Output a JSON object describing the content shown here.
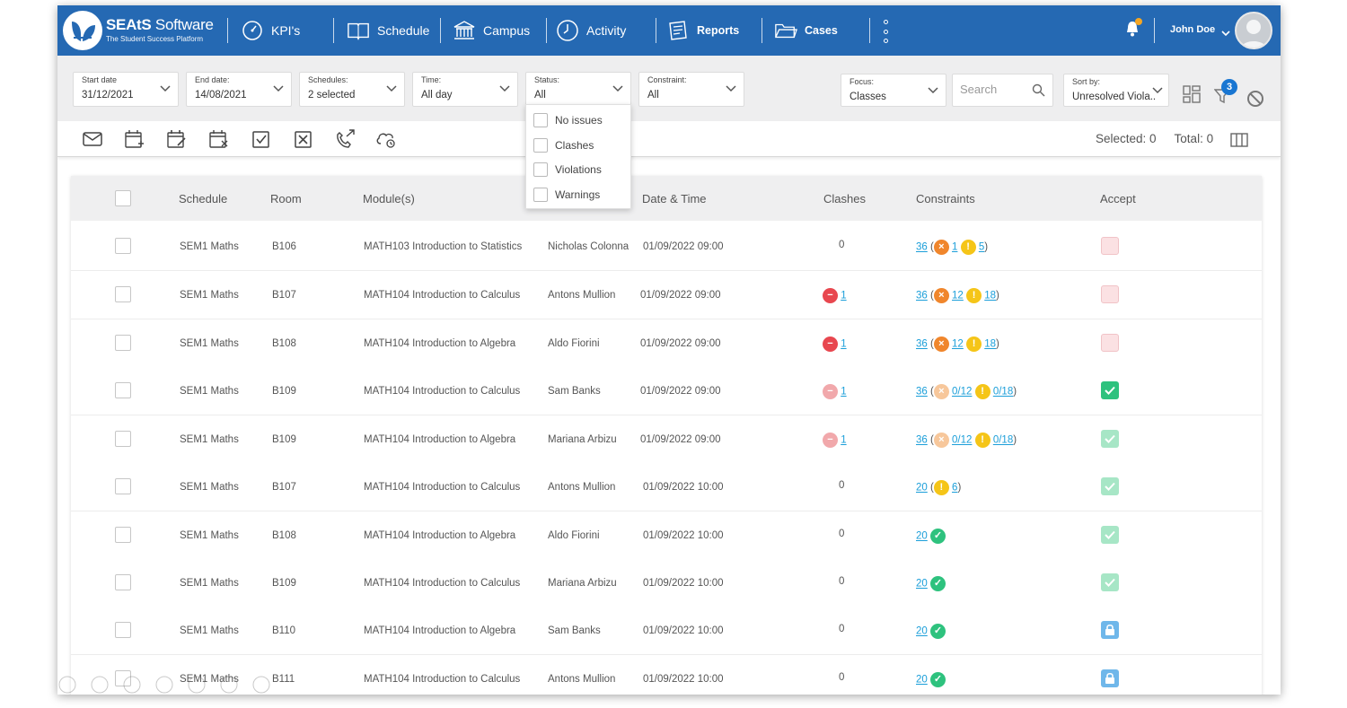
{
  "brand": {
    "name_bold": "SEAtS",
    "name_light": "Software",
    "tagline": "The Student Success Platform"
  },
  "nav": [
    {
      "label": "KPI's",
      "icon": "gauge-icon"
    },
    {
      "label": "Schedule",
      "icon": "book-icon"
    },
    {
      "label": "Campus",
      "icon": "building-icon"
    },
    {
      "label": "Activity",
      "icon": "clock-icon"
    },
    {
      "label": "Reports",
      "icon": "reports-icon"
    },
    {
      "label": "Cases",
      "icon": "folder-icon"
    }
  ],
  "user": {
    "name": "John Doe"
  },
  "filters": {
    "start_date": {
      "label": "Start date",
      "value": "31/12/2021"
    },
    "end_date": {
      "label": "End date:",
      "value": "14/08/2021"
    },
    "schedules": {
      "label": "Schedules:",
      "value": "2 selected"
    },
    "time": {
      "label": "Time:",
      "value": "All day"
    },
    "status": {
      "label": "Status:",
      "value": "All"
    },
    "constraint": {
      "label": "Constraint:",
      "value": "All"
    },
    "focus": {
      "label": "Focus:",
      "value": "Classes"
    },
    "search_placeholder": "Search",
    "sort": {
      "label": "Sort by:",
      "value": "Unresolved Viola..."
    },
    "active_filter_count": "3"
  },
  "status_options": [
    "No issues",
    "Clashes",
    "Violations",
    "Warnings"
  ],
  "toolbar": {
    "selected": "Selected: 0",
    "total": "Total: 0"
  },
  "table": {
    "headers": {
      "schedule": "Schedule",
      "room": "Room",
      "modules": "Module(s)",
      "datetime": "Date & Time",
      "clashes": "Clashes",
      "constraints": "Constraints",
      "accept": "Accept"
    },
    "rows": [
      {
        "schedule": "SEM1 Maths",
        "room": "B106",
        "module": "MATH103 Introduction to Statistics",
        "staff": "Nicholas Colonna",
        "datetime": "01/09/2022 09:00",
        "clashes": "0",
        "clash_icon": "",
        "c_total": "36",
        "c_x": "1",
        "c_warn": "5",
        "c_mode": "full",
        "accept": "pink"
      },
      {
        "schedule": "SEM1 Maths",
        "room": "B107",
        "module": "MATH104 Introduction to Calculus",
        "staff": "Antons Mullion",
        "datetime": "01/09/2022 09:00",
        "clashes": "1",
        "clash_icon": "red",
        "c_total": "36",
        "c_x": "12",
        "c_warn": "18",
        "c_mode": "full",
        "accept": "pink"
      },
      {
        "schedule": "SEM1 Maths",
        "room": "B108",
        "module": "MATH104 Introduction to Algebra",
        "staff": "Aldo Fiorini",
        "datetime": "01/09/2022 09:00",
        "clashes": "1",
        "clash_icon": "red",
        "c_total": "36",
        "c_x": "12",
        "c_warn": "18",
        "c_mode": "full",
        "accept": "pink"
      },
      {
        "schedule": "SEM1 Maths",
        "room": "B109",
        "module": "MATH104 Introduction to Calculus",
        "staff": "Sam Banks",
        "datetime": "01/09/2022 09:00",
        "clashes": "1",
        "clash_icon": "redfaded",
        "c_total": "36",
        "c_x": "0/12",
        "c_warn": "0/18",
        "c_mode": "faded",
        "accept": "green"
      },
      {
        "schedule": "SEM1 Maths",
        "room": "B109",
        "module": "MATH104 Introduction to Algebra",
        "staff": "Mariana Arbizu",
        "datetime": "01/09/2022 09:00",
        "clashes": "1",
        "clash_icon": "redfaded",
        "c_total": "36",
        "c_x": "0/12",
        "c_warn": "0/18",
        "c_mode": "faded",
        "accept": "greenfaded"
      },
      {
        "schedule": "SEM1 Maths",
        "room": "B107",
        "module": "MATH104 Introduction to Calculus",
        "staff": "Antons Mullion",
        "datetime": "01/09/2022 10:00",
        "clashes": "0",
        "clash_icon": "",
        "c_total": "20",
        "c_x": "",
        "c_warn": "6",
        "c_mode": "warnonly",
        "accept": "greenfaded"
      },
      {
        "schedule": "SEM1 Maths",
        "room": "B108",
        "module": "MATH104 Introduction to Algebra",
        "staff": "Aldo Fiorini",
        "datetime": "01/09/2022 10:00",
        "clashes": "0",
        "clash_icon": "",
        "c_total": "20",
        "c_x": "",
        "c_warn": "",
        "c_mode": "ok",
        "accept": "greenfaded"
      },
      {
        "schedule": "SEM1 Maths",
        "room": "B109",
        "module": "MATH104 Introduction to Calculus",
        "staff": "Mariana Arbizu",
        "datetime": "01/09/2022 10:00",
        "clashes": "0",
        "clash_icon": "",
        "c_total": "20",
        "c_x": "",
        "c_warn": "",
        "c_mode": "ok",
        "accept": "greenfaded"
      },
      {
        "schedule": "SEM1 Maths",
        "room": "B110",
        "module": "MATH104 Introduction to Algebra",
        "staff": "Sam Banks",
        "datetime": "01/09/2022 10:00",
        "clashes": "0",
        "clash_icon": "",
        "c_total": "20",
        "c_x": "",
        "c_warn": "",
        "c_mode": "ok",
        "accept": "lock"
      },
      {
        "schedule": "SEM1 Maths",
        "room": "B111",
        "module": "MATH104 Introduction to Calculus",
        "staff": "Antons Mullion",
        "datetime": "01/09/2022 10:00",
        "clashes": "0",
        "clash_icon": "",
        "c_total": "20",
        "c_x": "",
        "c_warn": "",
        "c_mode": "ok",
        "accept": "lock"
      }
    ]
  },
  "colors": {
    "primary": "#2569b3",
    "link": "#1a9ed9",
    "clash_red": "#e8474f",
    "violation_orange": "#f0862c",
    "warning_yellow": "#f5c518",
    "ok_green": "#2ec27e",
    "lock_blue": "#6fb7ea"
  }
}
